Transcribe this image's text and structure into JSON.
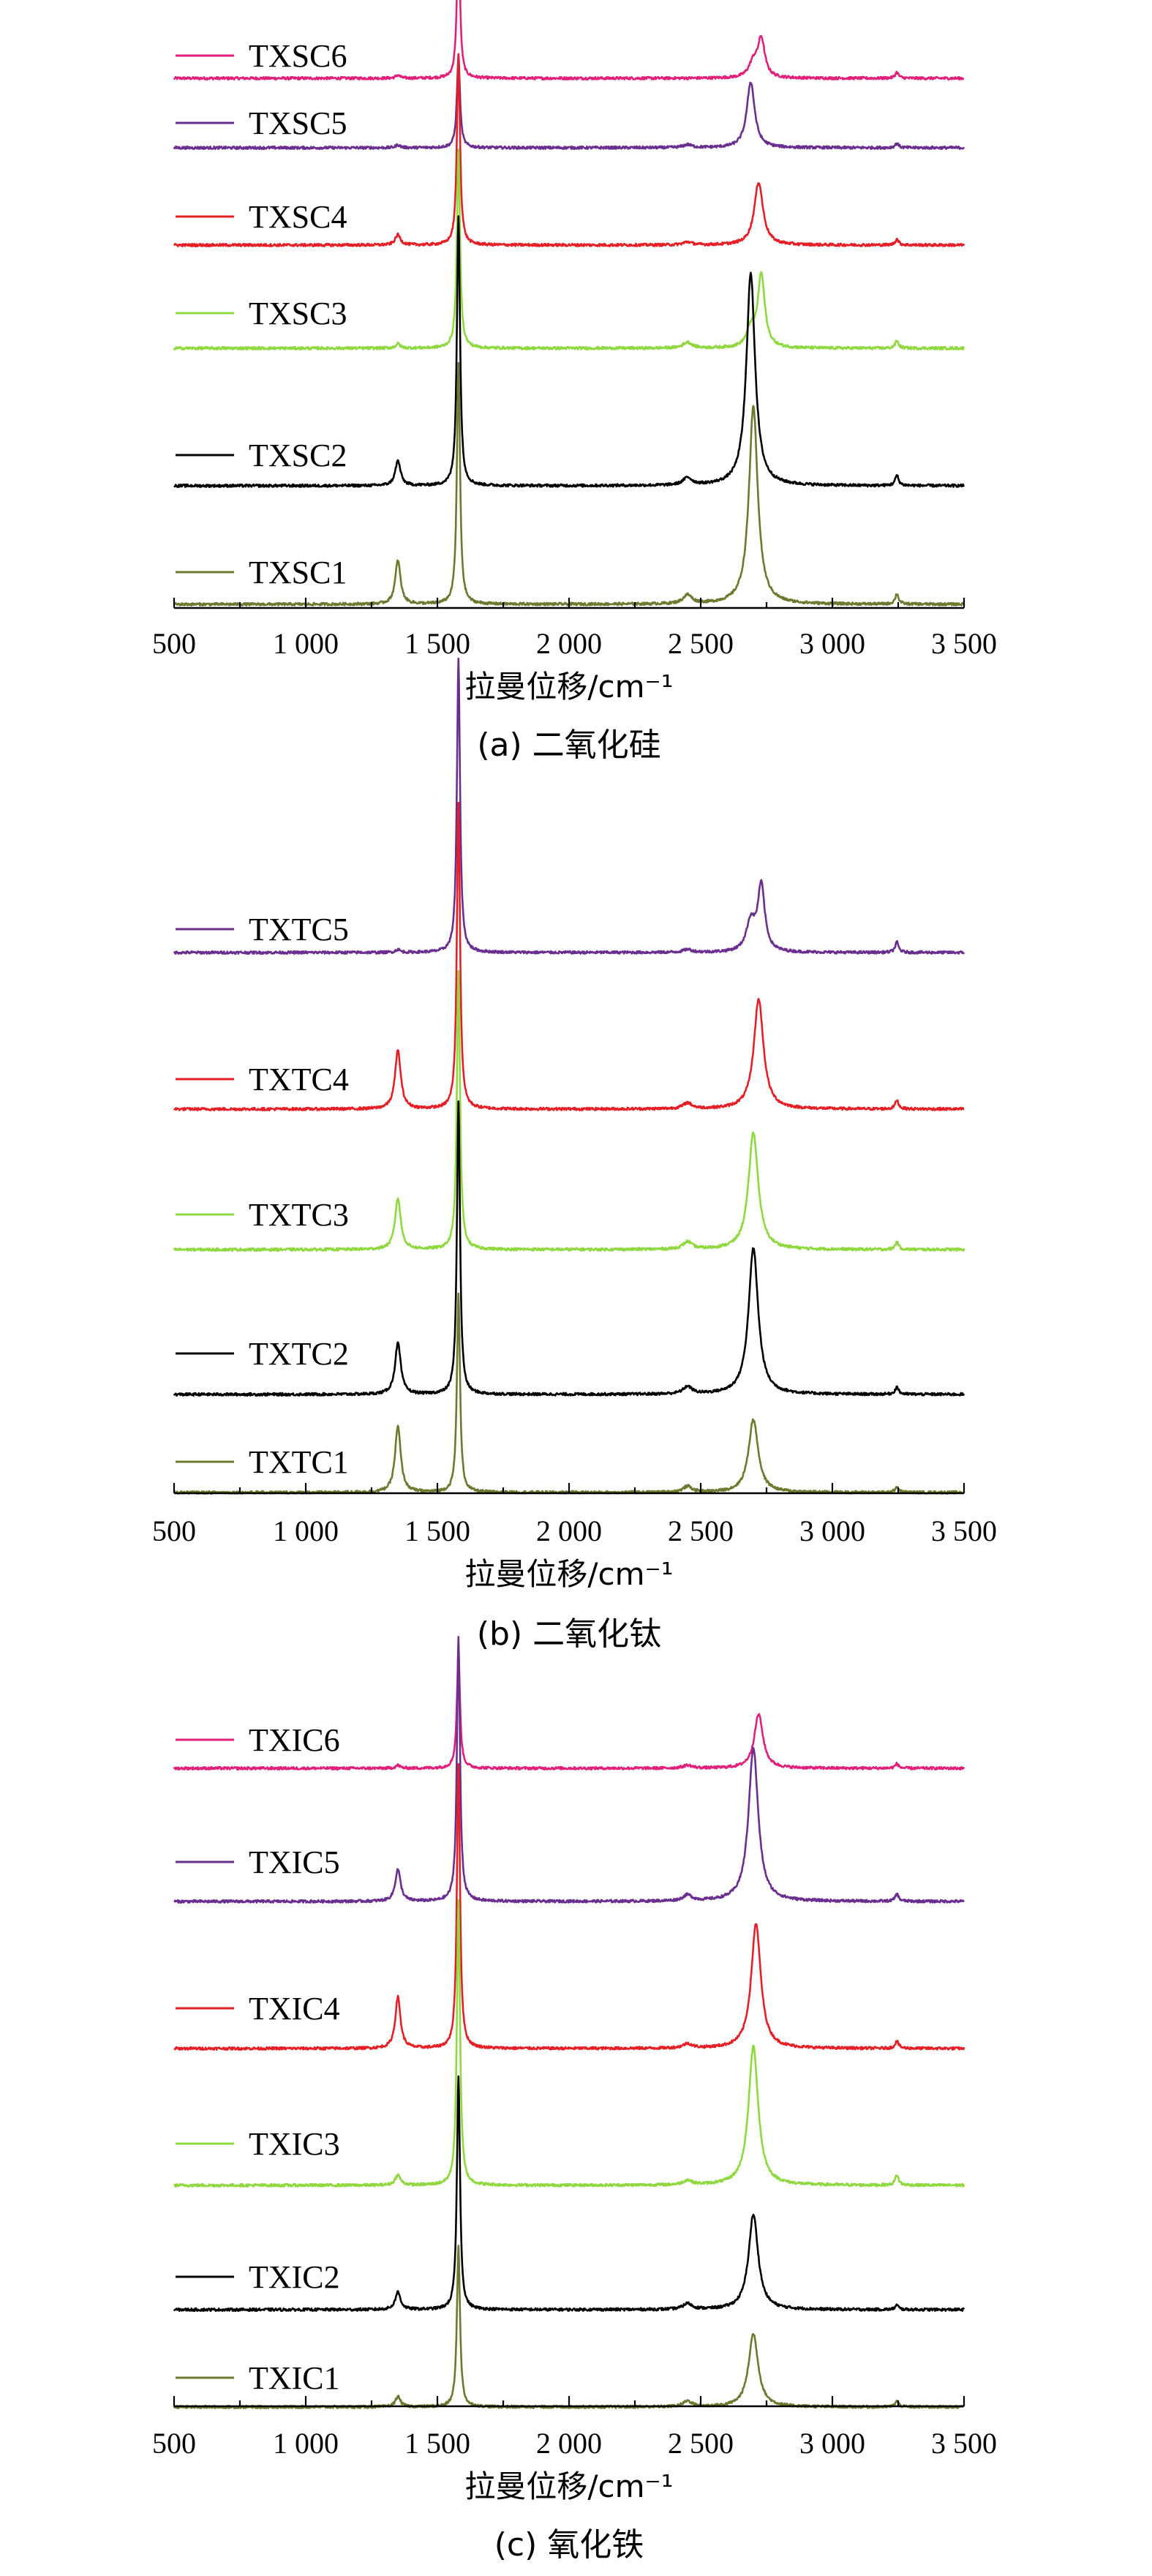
{
  "chart_data": [
    {
      "type": "line",
      "xlabel": "拉曼位移/cm⁻¹",
      "caption": "(a) 二氧化硅",
      "xlim": [
        500,
        3500
      ],
      "xticks": [
        500,
        1000,
        1500,
        2000,
        2500,
        3000,
        3500
      ],
      "xtick_labels": [
        "500",
        "1 000",
        "1 500",
        "2 000",
        "2 500",
        "3 000",
        "3 500"
      ],
      "y_axis_shown": false,
      "grid": false,
      "legend": "inline labels at left of each trace",
      "series": [
        {
          "name": "TXSC6",
          "color": "#e0207a",
          "peaks": [
            {
              "x": 1350,
              "h": 0.02,
              "w": 10
            },
            {
              "x": 1580,
              "h": 1.0,
              "w": 7
            },
            {
              "x": 2700,
              "h": 0.1,
              "w": 20
            },
            {
              "x": 2730,
              "h": 0.26,
              "w": 16
            },
            {
              "x": 3245,
              "h": 0.04,
              "w": 8
            }
          ]
        },
        {
          "name": "TXSC5",
          "color": "#6a2e8e",
          "peaks": [
            {
              "x": 1350,
              "h": 0.02,
              "w": 10
            },
            {
              "x": 1580,
              "h": 0.63,
              "w": 7
            },
            {
              "x": 2450,
              "h": 0.02,
              "w": 20
            },
            {
              "x": 2690,
              "h": 0.45,
              "w": 18
            },
            {
              "x": 3245,
              "h": 0.03,
              "w": 8
            }
          ]
        },
        {
          "name": "TXSC4",
          "color": "#e41f26",
          "peaks": [
            {
              "x": 1350,
              "h": 0.07,
              "w": 12
            },
            {
              "x": 1580,
              "h": 1.3,
              "w": 7
            },
            {
              "x": 2450,
              "h": 0.02,
              "w": 20
            },
            {
              "x": 2720,
              "h": 0.43,
              "w": 20
            },
            {
              "x": 3245,
              "h": 0.04,
              "w": 8
            }
          ]
        },
        {
          "name": "TXSC3",
          "color": "#8fd83f",
          "peaks": [
            {
              "x": 1350,
              "h": 0.03,
              "w": 10
            },
            {
              "x": 1580,
              "h": 1.35,
              "w": 7
            },
            {
              "x": 2450,
              "h": 0.04,
              "w": 20
            },
            {
              "x": 2690,
              "h": 0.12,
              "w": 18
            },
            {
              "x": 2730,
              "h": 0.5,
              "w": 16
            },
            {
              "x": 3245,
              "h": 0.05,
              "w": 8
            }
          ]
        },
        {
          "name": "TXSC2",
          "color": "#000000",
          "peaks": [
            {
              "x": 1350,
              "h": 0.17,
              "w": 12
            },
            {
              "x": 1580,
              "h": 1.85,
              "w": 7
            },
            {
              "x": 2450,
              "h": 0.05,
              "w": 20
            },
            {
              "x": 2690,
              "h": 1.45,
              "w": 20
            },
            {
              "x": 3245,
              "h": 0.07,
              "w": 8
            }
          ]
        },
        {
          "name": "TXSC1",
          "color": "#6b7a2e",
          "peaks": [
            {
              "x": 1350,
              "h": 0.3,
              "w": 12
            },
            {
              "x": 1580,
              "h": 1.65,
              "w": 7
            },
            {
              "x": 2450,
              "h": 0.06,
              "w": 20
            },
            {
              "x": 2700,
              "h": 1.35,
              "w": 20
            },
            {
              "x": 3245,
              "h": 0.07,
              "w": 8
            }
          ]
        }
      ]
    },
    {
      "type": "line",
      "xlabel": "拉曼位移/cm⁻¹",
      "caption": "(b) 二氧化钛",
      "xlim": [
        500,
        3500
      ],
      "xticks": [
        500,
        1000,
        1500,
        2000,
        2500,
        3000,
        3500
      ],
      "xtick_labels": [
        "500",
        "1 000",
        "1 500",
        "2 000",
        "2 500",
        "3 000",
        "3 500"
      ],
      "y_axis_shown": false,
      "grid": false,
      "legend": "inline labels at left of each trace",
      "series": [
        {
          "name": "TXTC5",
          "color": "#6a2e8e",
          "peaks": [
            {
              "x": 1350,
              "h": 0.02,
              "w": 10
            },
            {
              "x": 1580,
              "h": 2.0,
              "w": 7
            },
            {
              "x": 2450,
              "h": 0.02,
              "w": 20
            },
            {
              "x": 2690,
              "h": 0.2,
              "w": 20
            },
            {
              "x": 2730,
              "h": 0.45,
              "w": 16
            },
            {
              "x": 3245,
              "h": 0.07,
              "w": 8
            }
          ]
        },
        {
          "name": "TXTC4",
          "color": "#e41f26",
          "peaks": [
            {
              "x": 1350,
              "h": 0.4,
              "w": 13
            },
            {
              "x": 1580,
              "h": 2.1,
              "w": 7
            },
            {
              "x": 2450,
              "h": 0.04,
              "w": 20
            },
            {
              "x": 2720,
              "h": 0.75,
              "w": 22
            },
            {
              "x": 3245,
              "h": 0.06,
              "w": 8
            }
          ]
        },
        {
          "name": "TXTC3",
          "color": "#8fd83f",
          "peaks": [
            {
              "x": 1350,
              "h": 0.35,
              "w": 13
            },
            {
              "x": 1580,
              "h": 1.9,
              "w": 7
            },
            {
              "x": 2450,
              "h": 0.05,
              "w": 20
            },
            {
              "x": 2700,
              "h": 0.8,
              "w": 22
            },
            {
              "x": 3245,
              "h": 0.05,
              "w": 8
            }
          ]
        },
        {
          "name": "TXTC2",
          "color": "#000000",
          "peaks": [
            {
              "x": 1350,
              "h": 0.35,
              "w": 13
            },
            {
              "x": 1580,
              "h": 2.0,
              "w": 7
            },
            {
              "x": 2450,
              "h": 0.05,
              "w": 20
            },
            {
              "x": 2700,
              "h": 1.0,
              "w": 22
            },
            {
              "x": 3245,
              "h": 0.05,
              "w": 8
            }
          ]
        },
        {
          "name": "TXTC1",
          "color": "#6b7a2e",
          "peaks": [
            {
              "x": 1350,
              "h": 0.45,
              "w": 13
            },
            {
              "x": 1580,
              "h": 1.35,
              "w": 7
            },
            {
              "x": 2450,
              "h": 0.04,
              "w": 20
            },
            {
              "x": 2700,
              "h": 0.5,
              "w": 22
            },
            {
              "x": 3245,
              "h": 0.04,
              "w": 8
            }
          ]
        }
      ]
    },
    {
      "type": "line",
      "xlabel": "拉曼位移/cm⁻¹",
      "caption": "(c) 氧化铁",
      "xlim": [
        500,
        3500
      ],
      "xticks": [
        500,
        1000,
        1500,
        2000,
        2500,
        3000,
        3500
      ],
      "xtick_labels": [
        "500",
        "1 000",
        "1 500",
        "2 000",
        "2 500",
        "3 000",
        "3 500"
      ],
      "y_axis_shown": false,
      "grid": false,
      "legend": "inline labels at left of each trace",
      "series": [
        {
          "name": "TXIC6",
          "color": "#e0207a",
          "peaks": [
            {
              "x": 1350,
              "h": 0.02,
              "w": 10
            },
            {
              "x": 1580,
              "h": 0.8,
              "w": 7
            },
            {
              "x": 2450,
              "h": 0.02,
              "w": 20
            },
            {
              "x": 2720,
              "h": 0.37,
              "w": 20
            },
            {
              "x": 3245,
              "h": 0.03,
              "w": 8
            }
          ]
        },
        {
          "name": "TXIC5",
          "color": "#6a2e8e",
          "peaks": [
            {
              "x": 1350,
              "h": 0.22,
              "w": 12
            },
            {
              "x": 1580,
              "h": 1.8,
              "w": 7
            },
            {
              "x": 2450,
              "h": 0.04,
              "w": 20
            },
            {
              "x": 2700,
              "h": 1.05,
              "w": 22
            },
            {
              "x": 3245,
              "h": 0.05,
              "w": 8
            }
          ]
        },
        {
          "name": "TXIC4",
          "color": "#e41f26",
          "peaks": [
            {
              "x": 1350,
              "h": 0.35,
              "w": 12
            },
            {
              "x": 1580,
              "h": 1.95,
              "w": 7
            },
            {
              "x": 2450,
              "h": 0.03,
              "w": 20
            },
            {
              "x": 2710,
              "h": 0.85,
              "w": 22
            },
            {
              "x": 3245,
              "h": 0.05,
              "w": 8
            }
          ]
        },
        {
          "name": "TXIC3",
          "color": "#8fd83f",
          "peaks": [
            {
              "x": 1350,
              "h": 0.07,
              "w": 12
            },
            {
              "x": 1580,
              "h": 1.95,
              "w": 7
            },
            {
              "x": 2450,
              "h": 0.03,
              "w": 20
            },
            {
              "x": 2700,
              "h": 0.95,
              "w": 22
            },
            {
              "x": 3245,
              "h": 0.07,
              "w": 8
            }
          ]
        },
        {
          "name": "TXIC2",
          "color": "#000000",
          "peaks": [
            {
              "x": 1350,
              "h": 0.12,
              "w": 12
            },
            {
              "x": 1580,
              "h": 1.6,
              "w": 7
            },
            {
              "x": 2450,
              "h": 0.04,
              "w": 20
            },
            {
              "x": 2700,
              "h": 0.65,
              "w": 22
            },
            {
              "x": 3245,
              "h": 0.03,
              "w": 8
            }
          ]
        },
        {
          "name": "TXIC1",
          "color": "#6b7a2e",
          "peaks": [
            {
              "x": 1350,
              "h": 0.07,
              "w": 12
            },
            {
              "x": 1580,
              "h": 1.1,
              "w": 7
            },
            {
              "x": 2450,
              "h": 0.04,
              "w": 20
            },
            {
              "x": 2700,
              "h": 0.5,
              "w": 22
            },
            {
              "x": 3245,
              "h": 0.04,
              "w": 8
            }
          ]
        }
      ]
    }
  ]
}
